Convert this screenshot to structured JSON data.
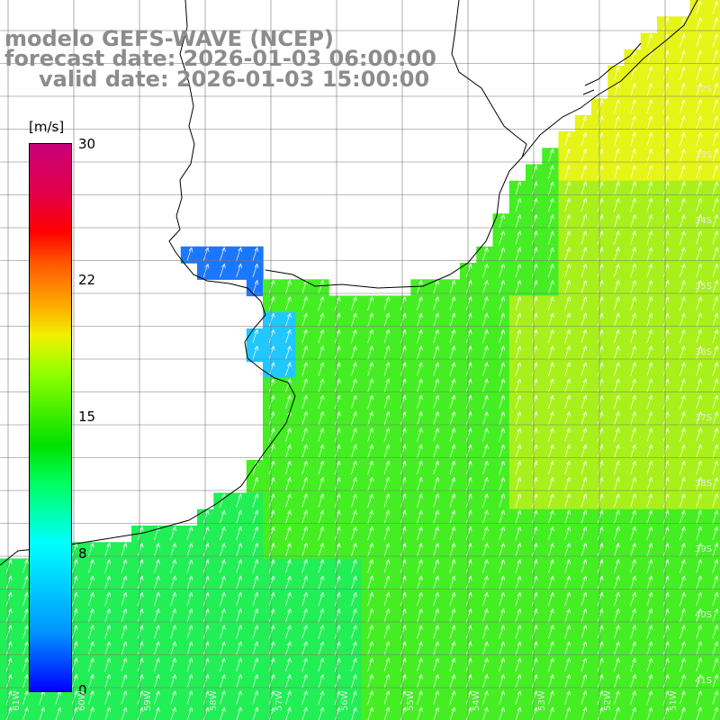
{
  "title": {
    "line1": "modelo GEFS-WAVE (NCEP)",
    "line2": "forecast date: 2026-01-03 06:00:00",
    "line3": "valid date: 2026-01-03 15:00:00"
  },
  "colorbar": {
    "unit": "[m/s]",
    "ticks": [
      "30",
      "22",
      "15",
      "8",
      "0"
    ],
    "colors": [
      "#0000ff",
      "#00ffff",
      "#00e000",
      "#f0f000",
      "#ff0000",
      "#c8007a"
    ]
  },
  "map": {
    "lat_labels": [
      "32S",
      "33S",
      "34S",
      "35S",
      "36S",
      "37S",
      "38S",
      "39S",
      "40S",
      "41S"
    ],
    "lon_labels": [
      "61W",
      "60W",
      "59W",
      "58W",
      "57W",
      "56W",
      "55W",
      "54W",
      "53W",
      "52W",
      "51W"
    ],
    "field_colors": {
      "estuary_low": "#1a78ff",
      "estuary_mid": "#20c8ff",
      "coastal": "#22ee55",
      "open_sea": "#44ee22",
      "offshore": "#a8f01c",
      "high": "#e6f418"
    }
  }
}
